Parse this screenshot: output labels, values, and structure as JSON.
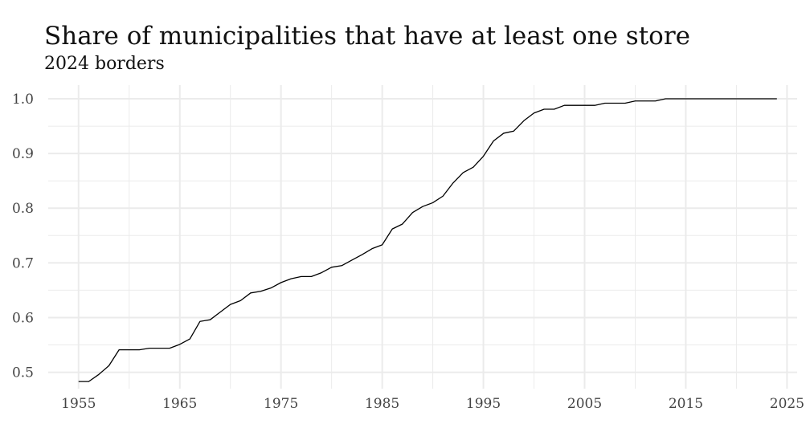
{
  "chart_data": {
    "type": "line",
    "title": "Share of municipalities that have at least one store",
    "subtitle": "2024 borders",
    "xlabel": "",
    "ylabel": "",
    "xlim": [
      1952,
      2026
    ],
    "ylim": [
      0.47,
      1.025
    ],
    "x_ticks": [
      1955,
      1965,
      1975,
      1985,
      1995,
      2005,
      2015,
      2025
    ],
    "y_ticks": [
      0.5,
      0.6,
      0.7,
      0.8,
      0.9,
      1.0
    ],
    "y_tick_labels": [
      "0.5",
      "0.6",
      "0.7",
      "0.8",
      "0.9",
      "1.0"
    ],
    "grid": true,
    "legend": "none",
    "line_color": "#000000",
    "grid_color": "#ebebeb",
    "series": [
      {
        "x": [
          1955,
          1956,
          1957,
          1958,
          1959,
          1960,
          1961,
          1962,
          1963,
          1964,
          1965,
          1966,
          1967,
          1968,
          1969,
          1970,
          1971,
          1972,
          1973,
          1974,
          1975,
          1976,
          1977,
          1978,
          1979,
          1980,
          1981,
          1982,
          1983,
          1984,
          1985,
          1986,
          1987,
          1988,
          1989,
          1990,
          1991,
          1992,
          1993,
          1994,
          1995,
          1996,
          1997,
          1998,
          1999,
          2000,
          2001,
          2002,
          2003,
          2004,
          2005,
          2006,
          2007,
          2008,
          2009,
          2010,
          2011,
          2012,
          2013,
          2014,
          2015,
          2016,
          2017,
          2018,
          2019,
          2020,
          2021,
          2022,
          2023,
          2024
        ],
        "values": [
          0.483,
          0.483,
          0.496,
          0.512,
          0.541,
          0.541,
          0.541,
          0.544,
          0.544,
          0.544,
          0.551,
          0.561,
          0.593,
          0.596,
          0.61,
          0.624,
          0.631,
          0.645,
          0.648,
          0.654,
          0.664,
          0.671,
          0.675,
          0.675,
          0.682,
          0.692,
          0.695,
          0.705,
          0.715,
          0.726,
          0.733,
          0.762,
          0.771,
          0.792,
          0.803,
          0.81,
          0.822,
          0.846,
          0.865,
          0.875,
          0.895,
          0.923,
          0.937,
          0.941,
          0.96,
          0.974,
          0.981,
          0.981,
          0.988,
          0.988,
          0.988,
          0.988,
          0.992,
          0.992,
          0.992,
          0.996,
          0.996,
          0.996,
          1.0,
          1.0,
          1.0,
          1.0,
          1.0,
          1.0,
          1.0,
          1.0,
          1.0,
          1.0,
          1.0,
          1.0
        ]
      }
    ]
  }
}
